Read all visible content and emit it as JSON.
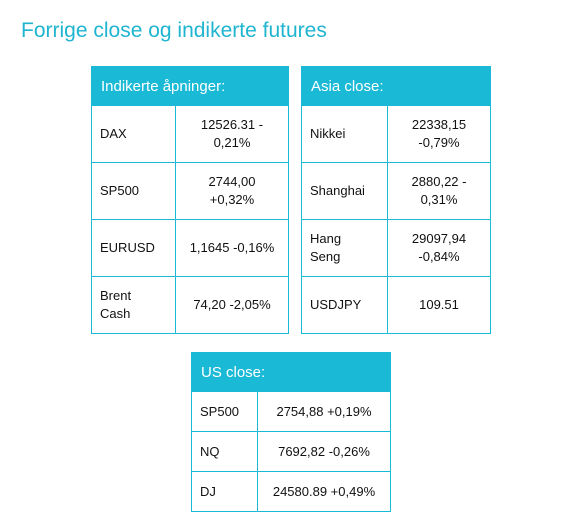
{
  "title": "Forrige close og indikerte futures",
  "tables": [
    {
      "header": "Indikerte åpninger:",
      "rows": [
        {
          "name": "DAX",
          "value": "12526.31 -\n0,21%"
        },
        {
          "name": "SP500",
          "value": "2744,00\n+0,32%"
        },
        {
          "name": "EURUSD",
          "value": "1,1645 -0,16%"
        },
        {
          "name": "Brent\nCash",
          "value": "74,20 -2,05%"
        }
      ]
    },
    {
      "header": "Asia close:",
      "rows": [
        {
          "name": "Nikkei",
          "value": "22338,15\n-0,79%"
        },
        {
          "name": "Shanghai",
          "value": "2880,22 -\n0,31%"
        },
        {
          "name": "Hang\nSeng",
          "value": "29097,94\n-0,84%"
        },
        {
          "name": "USDJPY",
          "value": "109.51"
        }
      ]
    },
    {
      "header": "US close:",
      "rows": [
        {
          "name": "SP500",
          "value": "2754,88 +0,19%"
        },
        {
          "name": "NQ",
          "value": "7692,82 -0,26%"
        },
        {
          "name": "DJ",
          "value": "24580.89 +0,49%"
        }
      ]
    }
  ],
  "colors": {
    "accent": "#1ab9d6",
    "title": "#1fb5d0",
    "header_text": "#ffffff"
  }
}
